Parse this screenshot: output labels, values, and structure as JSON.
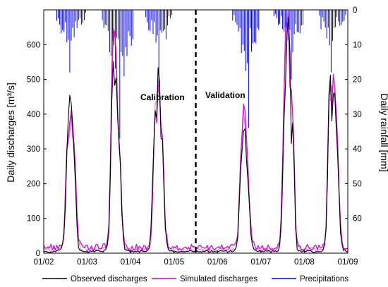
{
  "chart_data": {
    "type": "line",
    "xlabel": "",
    "ylabel_left": "Daily discharges [m³/s]",
    "ylabel_right": "Daily rainfall [mm]",
    "x_ticks": [
      "01/02",
      "01/03",
      "01/04",
      "01/05",
      "01/06",
      "01/07",
      "01/08",
      "01/09"
    ],
    "x_range": [
      "01/02",
      "01/09"
    ],
    "ylim_left": [
      0,
      700
    ],
    "y_ticks_left": [
      0,
      100,
      200,
      300,
      400,
      500,
      600
    ],
    "ylim_right_inverted": [
      0,
      70
    ],
    "y_ticks_right": [
      0,
      10,
      20,
      30,
      40,
      50,
      60
    ],
    "divider_x": "01/05.5",
    "annotations": [
      "Calibration",
      "Validation"
    ],
    "legend_position": "bottom",
    "colors": {
      "observed": "#000000",
      "simulated": "#cc00cc",
      "precipitation": "#0000ff",
      "divider": "#000000"
    },
    "series": [
      {
        "name": "Observed discharges",
        "peaks": [
          {
            "x": 2.55,
            "y": 240
          },
          {
            "x": 2.62,
            "y": 330
          },
          {
            "x": 2.7,
            "y": 195
          },
          {
            "x": 3.58,
            "y": 400
          },
          {
            "x": 3.66,
            "y": 360
          },
          {
            "x": 3.75,
            "y": 215
          },
          {
            "x": 4.55,
            "y": 300
          },
          {
            "x": 4.64,
            "y": 425
          },
          {
            "x": 4.73,
            "y": 235
          },
          {
            "x": 6.55,
            "y": 190
          },
          {
            "x": 6.62,
            "y": 240
          },
          {
            "x": 6.7,
            "y": 150
          },
          {
            "x": 7.55,
            "y": 380
          },
          {
            "x": 7.63,
            "y": 575
          },
          {
            "x": 7.73,
            "y": 300
          },
          {
            "x": 8.58,
            "y": 450
          },
          {
            "x": 8.68,
            "y": 360
          },
          {
            "x": 8.76,
            "y": 200
          }
        ]
      },
      {
        "name": "Simulated discharges",
        "peaks": [
          {
            "x": 2.55,
            "y": 250
          },
          {
            "x": 2.64,
            "y": 300
          },
          {
            "x": 2.72,
            "y": 180
          },
          {
            "x": 3.58,
            "y": 470
          },
          {
            "x": 3.66,
            "y": 440
          },
          {
            "x": 3.75,
            "y": 220
          },
          {
            "x": 4.55,
            "y": 280
          },
          {
            "x": 4.64,
            "y": 400
          },
          {
            "x": 4.73,
            "y": 250
          },
          {
            "x": 6.55,
            "y": 210
          },
          {
            "x": 6.62,
            "y": 275
          },
          {
            "x": 6.7,
            "y": 160
          },
          {
            "x": 7.55,
            "y": 420
          },
          {
            "x": 7.63,
            "y": 555
          },
          {
            "x": 7.73,
            "y": 310
          },
          {
            "x": 8.58,
            "y": 430
          },
          {
            "x": 8.68,
            "y": 390
          },
          {
            "x": 8.76,
            "y": 230
          }
        ]
      },
      {
        "name": "Precipitations",
        "seasons": [
          {
            "x_start": 2.3,
            "x_end": 2.95,
            "peak_x": 2.6,
            "peak_mm": 18
          },
          {
            "x_start": 3.35,
            "x_end": 4.05,
            "peak_x": 3.75,
            "peak_mm": 37
          },
          {
            "x_start": 4.35,
            "x_end": 4.95,
            "peak_x": 4.65,
            "peak_mm": 22
          },
          {
            "x_start": 6.35,
            "x_end": 6.95,
            "peak_x": 6.7,
            "peak_mm": 34
          },
          {
            "x_start": 7.3,
            "x_end": 7.95,
            "peak_x": 7.7,
            "peak_mm": 20
          },
          {
            "x_start": 8.35,
            "x_end": 8.95,
            "peak_x": 8.6,
            "peak_mm": 18
          }
        ]
      }
    ]
  }
}
